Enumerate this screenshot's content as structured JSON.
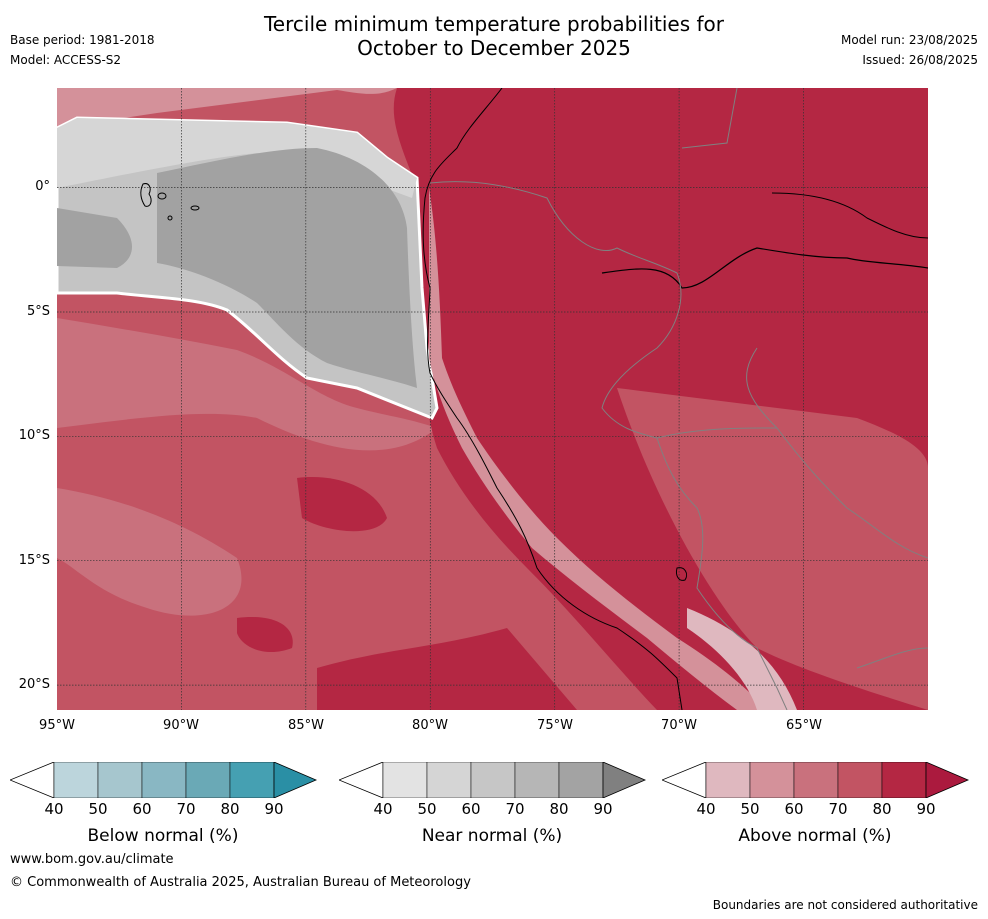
{
  "title": {
    "line1": "Tercile minimum temperature probabilities for",
    "line2": "October to December 2025"
  },
  "meta": {
    "base_period": "Base period: 1981-2018",
    "model": "Model: ACCESS-S2",
    "model_run": "Model run: 23/08/2025",
    "issued": "Issued: 26/08/2025"
  },
  "map": {
    "extent": {
      "lon": [
        -95,
        -60
      ],
      "lat": [
        -21,
        4
      ]
    },
    "lat_ticks": [
      "0°",
      "5°S",
      "10°S",
      "15°S",
      "20°S"
    ],
    "lon_ticks": [
      "95°W",
      "90°W",
      "85°W",
      "80°W",
      "75°W",
      "70°W",
      "65°W"
    ],
    "category_colors": {
      "near_normal": [
        "#e0e0e0",
        "#d3d3d3",
        "#c4c4c4",
        "#b3b3b3",
        "#a2a2a2",
        "#808080"
      ],
      "above_normal": [
        "#dfb8bf",
        "#d4919a",
        "#c9717d",
        "#c25463",
        "#b42743",
        "#ab1a3e"
      ],
      "below_normal": [
        "#bcd5dc",
        "#a6c6ce",
        "#89b7c3",
        "#6aa9b6",
        "#45a0b2",
        "#2a8fa5"
      ]
    },
    "coastline_color": "#000000",
    "border_color": "#808080"
  },
  "colorbars": [
    {
      "label": "Below normal (%)",
      "ticks": [
        "40",
        "50",
        "60",
        "70",
        "80",
        "90"
      ],
      "colors": [
        "#ffffff",
        "#bcd5dc",
        "#a6c6ce",
        "#89b7c3",
        "#6aa9b6",
        "#45a0b2",
        "#2a8fa5"
      ]
    },
    {
      "label": "Near normal (%)",
      "ticks": [
        "40",
        "50",
        "60",
        "70",
        "80",
        "90"
      ],
      "colors": [
        "#ffffff",
        "#e3e3e3",
        "#d5d5d5",
        "#c6c6c6",
        "#b6b6b6",
        "#a3a3a3",
        "#808080"
      ]
    },
    {
      "label": "Above normal (%)",
      "ticks": [
        "40",
        "50",
        "60",
        "70",
        "80",
        "90"
      ],
      "colors": [
        "#ffffff",
        "#dfb8bf",
        "#d4919a",
        "#c9717d",
        "#c25463",
        "#b42743",
        "#ab1a3e"
      ]
    }
  ],
  "footer": {
    "website": "www.bom.gov.au/climate",
    "copyright": "© Commonwealth of Australia 2025, Australian Bureau of Meteorology",
    "disclaimer": "Boundaries are not considered authoritative"
  }
}
